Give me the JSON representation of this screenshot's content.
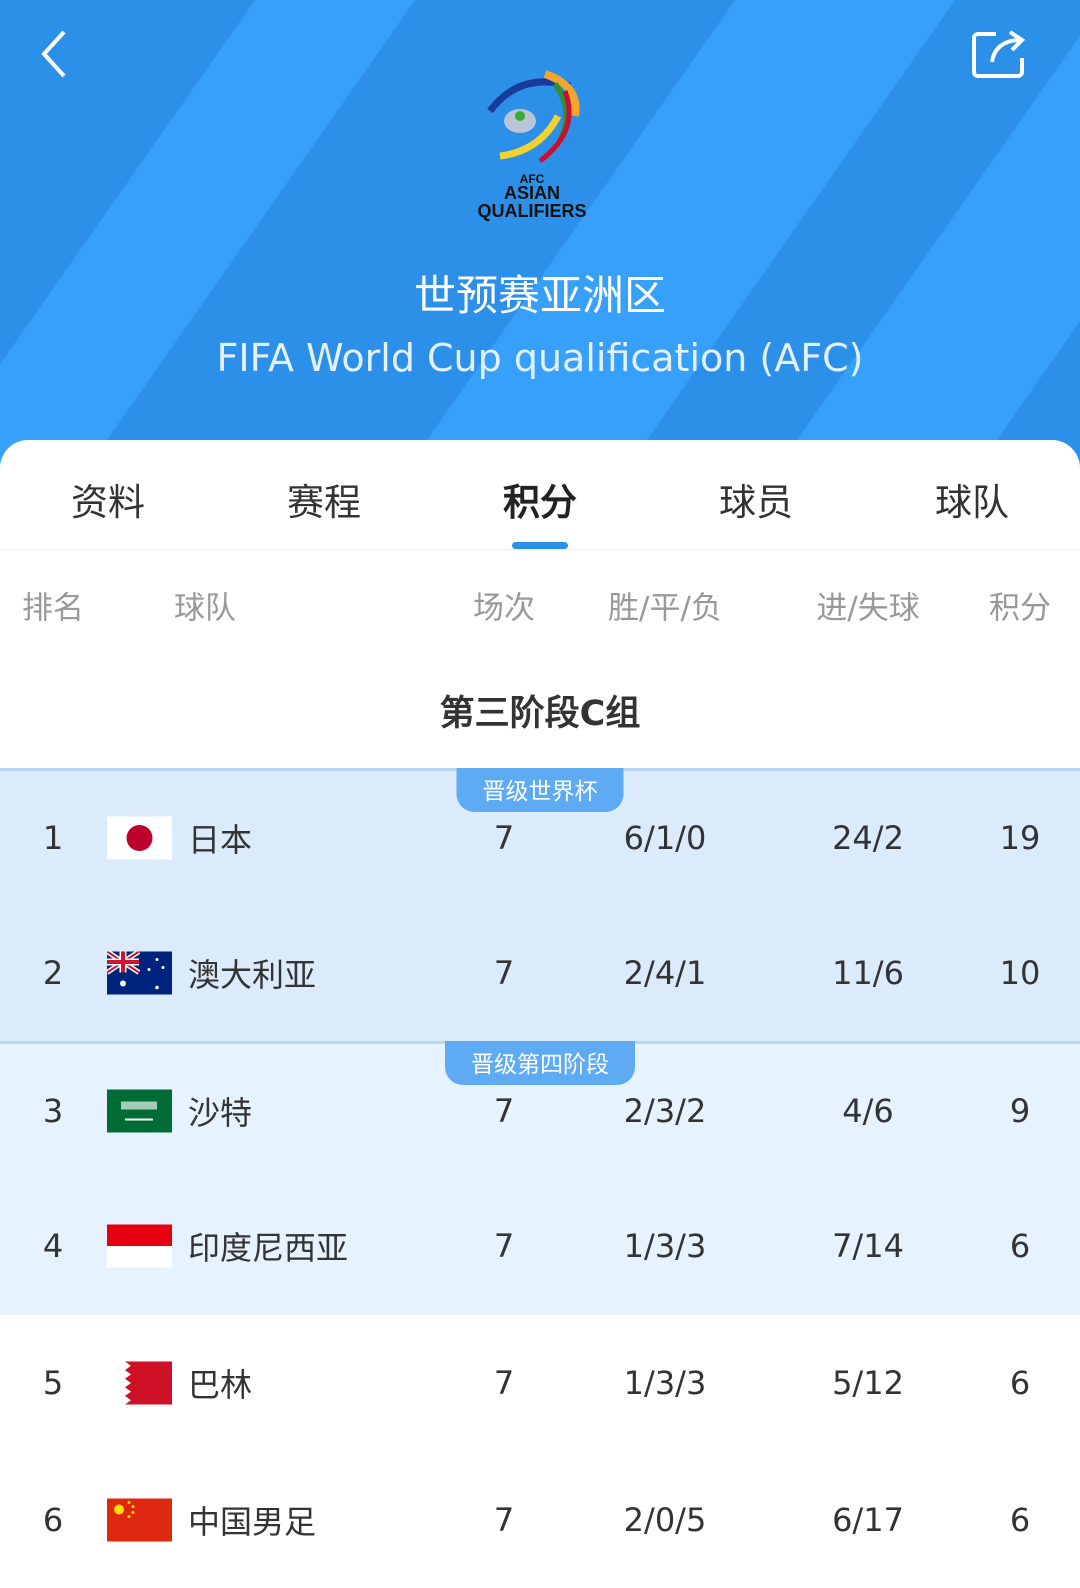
{
  "header": {
    "title": "世预赛亚洲区",
    "subtitle": "FIFA World Cup qualification (AFC)",
    "logo_text": [
      "AFC",
      "ASIAN",
      "QUALIFIERS"
    ],
    "back_icon": "chevron-left-icon",
    "share_icon": "share-icon",
    "color": "#2c8fe8"
  },
  "tabs": [
    {
      "label": "资料"
    },
    {
      "label": "赛程"
    },
    {
      "label": "积分",
      "active": true
    },
    {
      "label": "球员"
    },
    {
      "label": "球队"
    }
  ],
  "columns": {
    "rank": "排名",
    "team": "球队",
    "played": "场次",
    "wdl": "胜/平/负",
    "goals": "进/失球",
    "points": "积分"
  },
  "group_title": "第三阶段C组",
  "zones": [
    {
      "label": "晋级世界杯",
      "color": "#dcebfb"
    },
    {
      "label": "晋级第四阶段",
      "color": "#e6f2fd"
    }
  ],
  "rows": [
    {
      "rank": "1",
      "team": "日本",
      "flag": "japan",
      "played": "7",
      "wdl": "6/1/0",
      "goals": "24/2",
      "points": "19"
    },
    {
      "rank": "2",
      "team": "澳大利亚",
      "flag": "australia",
      "played": "7",
      "wdl": "2/4/1",
      "goals": "11/6",
      "points": "10"
    },
    {
      "rank": "3",
      "team": "沙特",
      "flag": "saudi-arabia",
      "played": "7",
      "wdl": "2/3/2",
      "goals": "4/6",
      "points": "9"
    },
    {
      "rank": "4",
      "team": "印度尼西亚",
      "flag": "indonesia",
      "played": "7",
      "wdl": "1/3/3",
      "goals": "7/14",
      "points": "6"
    },
    {
      "rank": "5",
      "team": "巴林",
      "flag": "bahrain",
      "played": "7",
      "wdl": "1/3/3",
      "goals": "5/12",
      "points": "6"
    },
    {
      "rank": "6",
      "team": "中国男足",
      "flag": "china",
      "played": "7",
      "wdl": "2/0/5",
      "goals": "6/17",
      "points": "6"
    }
  ]
}
